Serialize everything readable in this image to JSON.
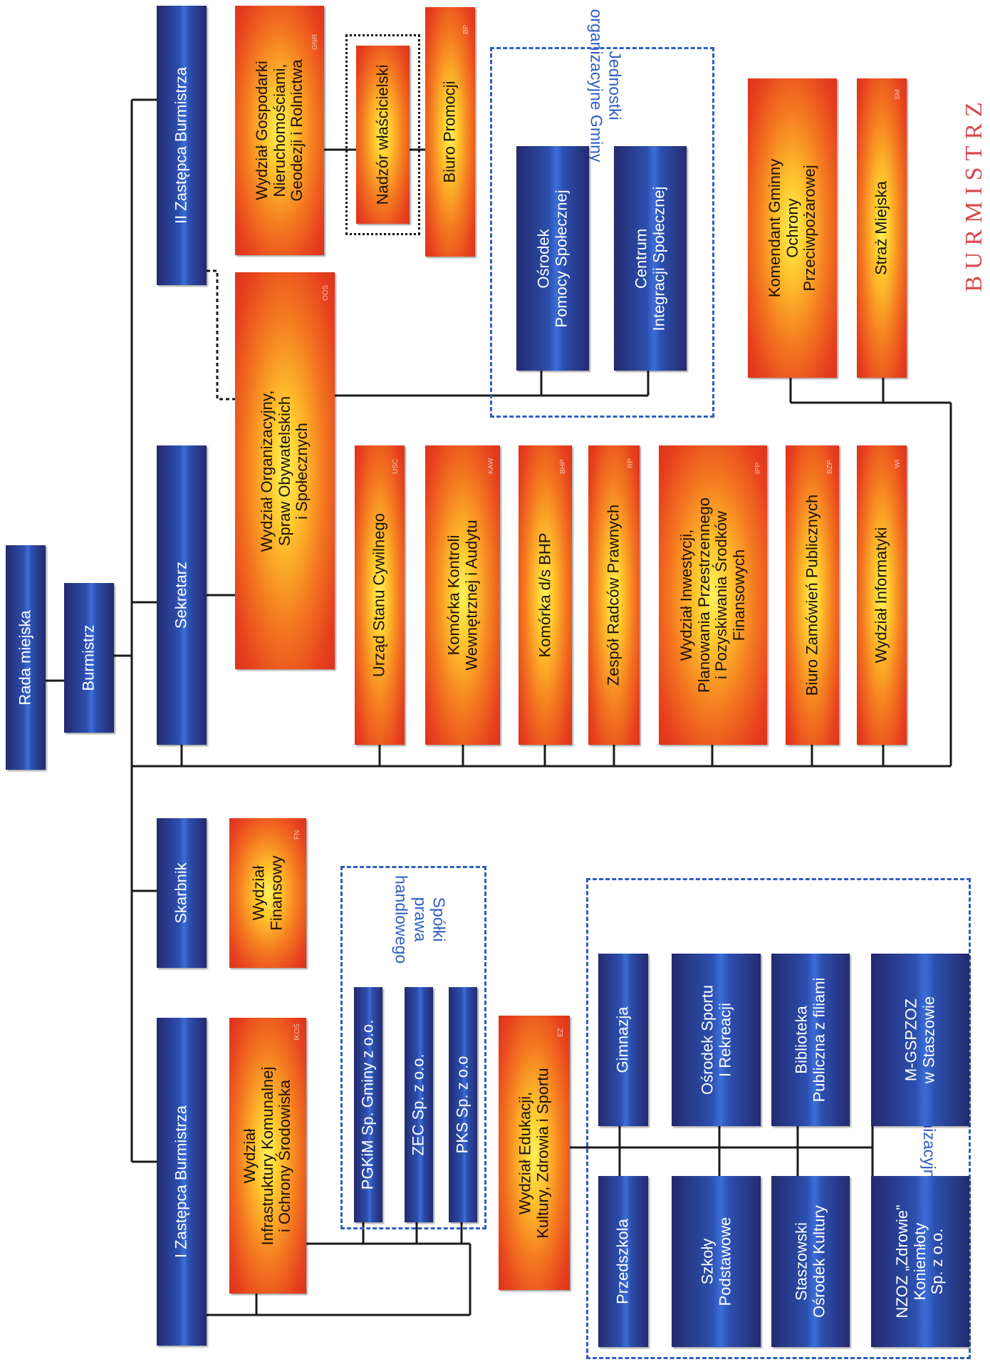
{
  "title": "BURMISTRZ",
  "rada": "Rada miejska",
  "burmistrz": "Burmistrz",
  "leaders": {
    "z1": "I Zastępca Burmistrza",
    "skarbnik": "Skarbnik",
    "sekretarz": "Sekretarz",
    "z2": "II Zastępca Burmistrza"
  },
  "units": {
    "wiks": {
      "label": "Wydział\nInfrastruktury Komunalnej\ni Ochrony Środowiska",
      "code": "IKOŚ"
    },
    "wf": {
      "label": "Wydział\nFinansowy",
      "code": "FN"
    },
    "wos": {
      "label": "Wydział Organizacyjny,\nSpraw Obywatelskich\ni Społecznych",
      "code": "OOS"
    },
    "wgn": {
      "label": "Wydział Gospodarki\nNieruchomościami,\nGeodezji i Rolnictwa",
      "code": "GNR"
    },
    "nw": {
      "label": "Nadzór właścicielski"
    },
    "bp": {
      "label": "Biuro Promocji",
      "code": "BP"
    },
    "usc": {
      "label": "Urząd Stanu Cywilnego",
      "code": "USC"
    },
    "kk": {
      "label": "Komórka Kontroli\nWewnętrznej i Audytu",
      "code": "KAW"
    },
    "bhp": {
      "label": "Komórka d/s BHP",
      "code": "BHP"
    },
    "zrp": {
      "label": "Zespół Radców Prawnych",
      "code": "RP"
    },
    "wip": {
      "label": "Wydział Inwestycji,\nPlanowania Przestrzennego\ni Pozyskiwania Środków\nFinansowych",
      "code": "IPP"
    },
    "bzp": {
      "label": "Biuro Zamówień Publicznych",
      "code": "BZP"
    },
    "wi": {
      "label": "Wydział Informatyki",
      "code": "WI"
    },
    "kg": {
      "label": "Komendant Gminny\nOchrony\nPrzeciwpożarowej"
    },
    "sm": {
      "label": "Straż Miejska",
      "code": "SM"
    },
    "wez": {
      "label": "Wydział Edukacji,\nKultury, Zdrowia i Sportu",
      "code": "EZ"
    }
  },
  "companies_group": "Spółki\nprawa\nhandlowego",
  "companies": [
    "PGKiM Sp. Gminy z o.o.",
    "ZEC Sp. z o.o.",
    "PKS Sp. z o.o"
  ],
  "jednostki_top": {
    "group": "Jednostki\norganizacyjne Gminy",
    "ops": "Ośrodek\nPomocy Społecznej",
    "cis": "Centrum\nIntegracji Społecznej"
  },
  "jednostki_bottom": {
    "group": "Jednostki organizacyjne Gminy",
    "przedszkola": "Przedszkola",
    "gimnazja": "Gimnazja",
    "szkoly": "Szkoły\nPodstawowe",
    "osir": "Ośrodek Sportu\nI Rekreacji",
    "sok": "Staszowski\nOśrodek Kultury",
    "bib": "Biblioteka\nPubliczna z filiami",
    "nzoz": "NZOZ „Zdrowie”\nKoniemłoty\nSp. z o.o.",
    "mgspzoz": "M-GSPZOZ\nw Staszowie"
  }
}
